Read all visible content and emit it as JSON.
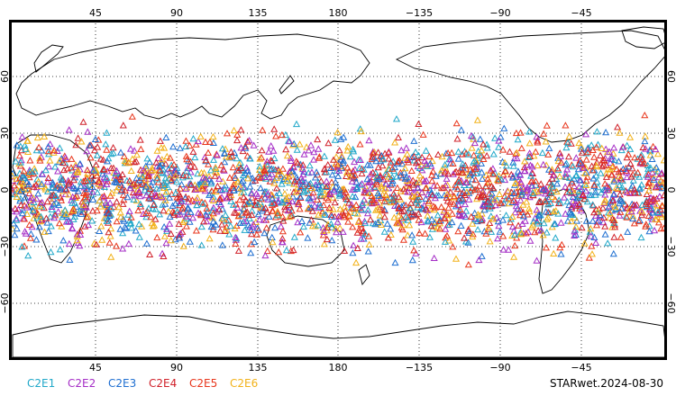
{
  "map": {
    "projection": "equirectangular, centered at 180",
    "lon_range": [
      0,
      360
    ],
    "lat_range": [
      -90,
      90
    ],
    "grid": true,
    "grid_lon_ticks": [
      45,
      90,
      135,
      180,
      225,
      270,
      315
    ],
    "grid_lat_ticks": [
      60,
      30,
      0,
      -30,
      -60
    ],
    "top_lon_labels": [
      "45",
      "90",
      "135",
      "180",
      "−135",
      "−90",
      "−45"
    ],
    "bottom_lon_labels": [
      "45",
      "90",
      "135",
      "180",
      "−135",
      "−90",
      "−45"
    ],
    "left_lat_labels": [
      "60",
      "30",
      "0",
      "−30",
      "−60"
    ],
    "right_lat_labels": [
      "60",
      "30",
      "0",
      "−30",
      "−60"
    ],
    "coastline_color": "#000000",
    "marker_shape": "triangle-outline"
  },
  "legend": {
    "items": [
      {
        "label": "C2E1",
        "color": "#21a8c9"
      },
      {
        "label": "C2E2",
        "color": "#a52ec6"
      },
      {
        "label": "C2E3",
        "color": "#1f6fd1"
      },
      {
        "label": "C2E4",
        "color": "#d0212a"
      },
      {
        "label": "C2E5",
        "color": "#e8361c"
      },
      {
        "label": "C2E6",
        "color": "#f2b21a"
      }
    ]
  },
  "stamp": "STARwet.2024-08-30"
}
